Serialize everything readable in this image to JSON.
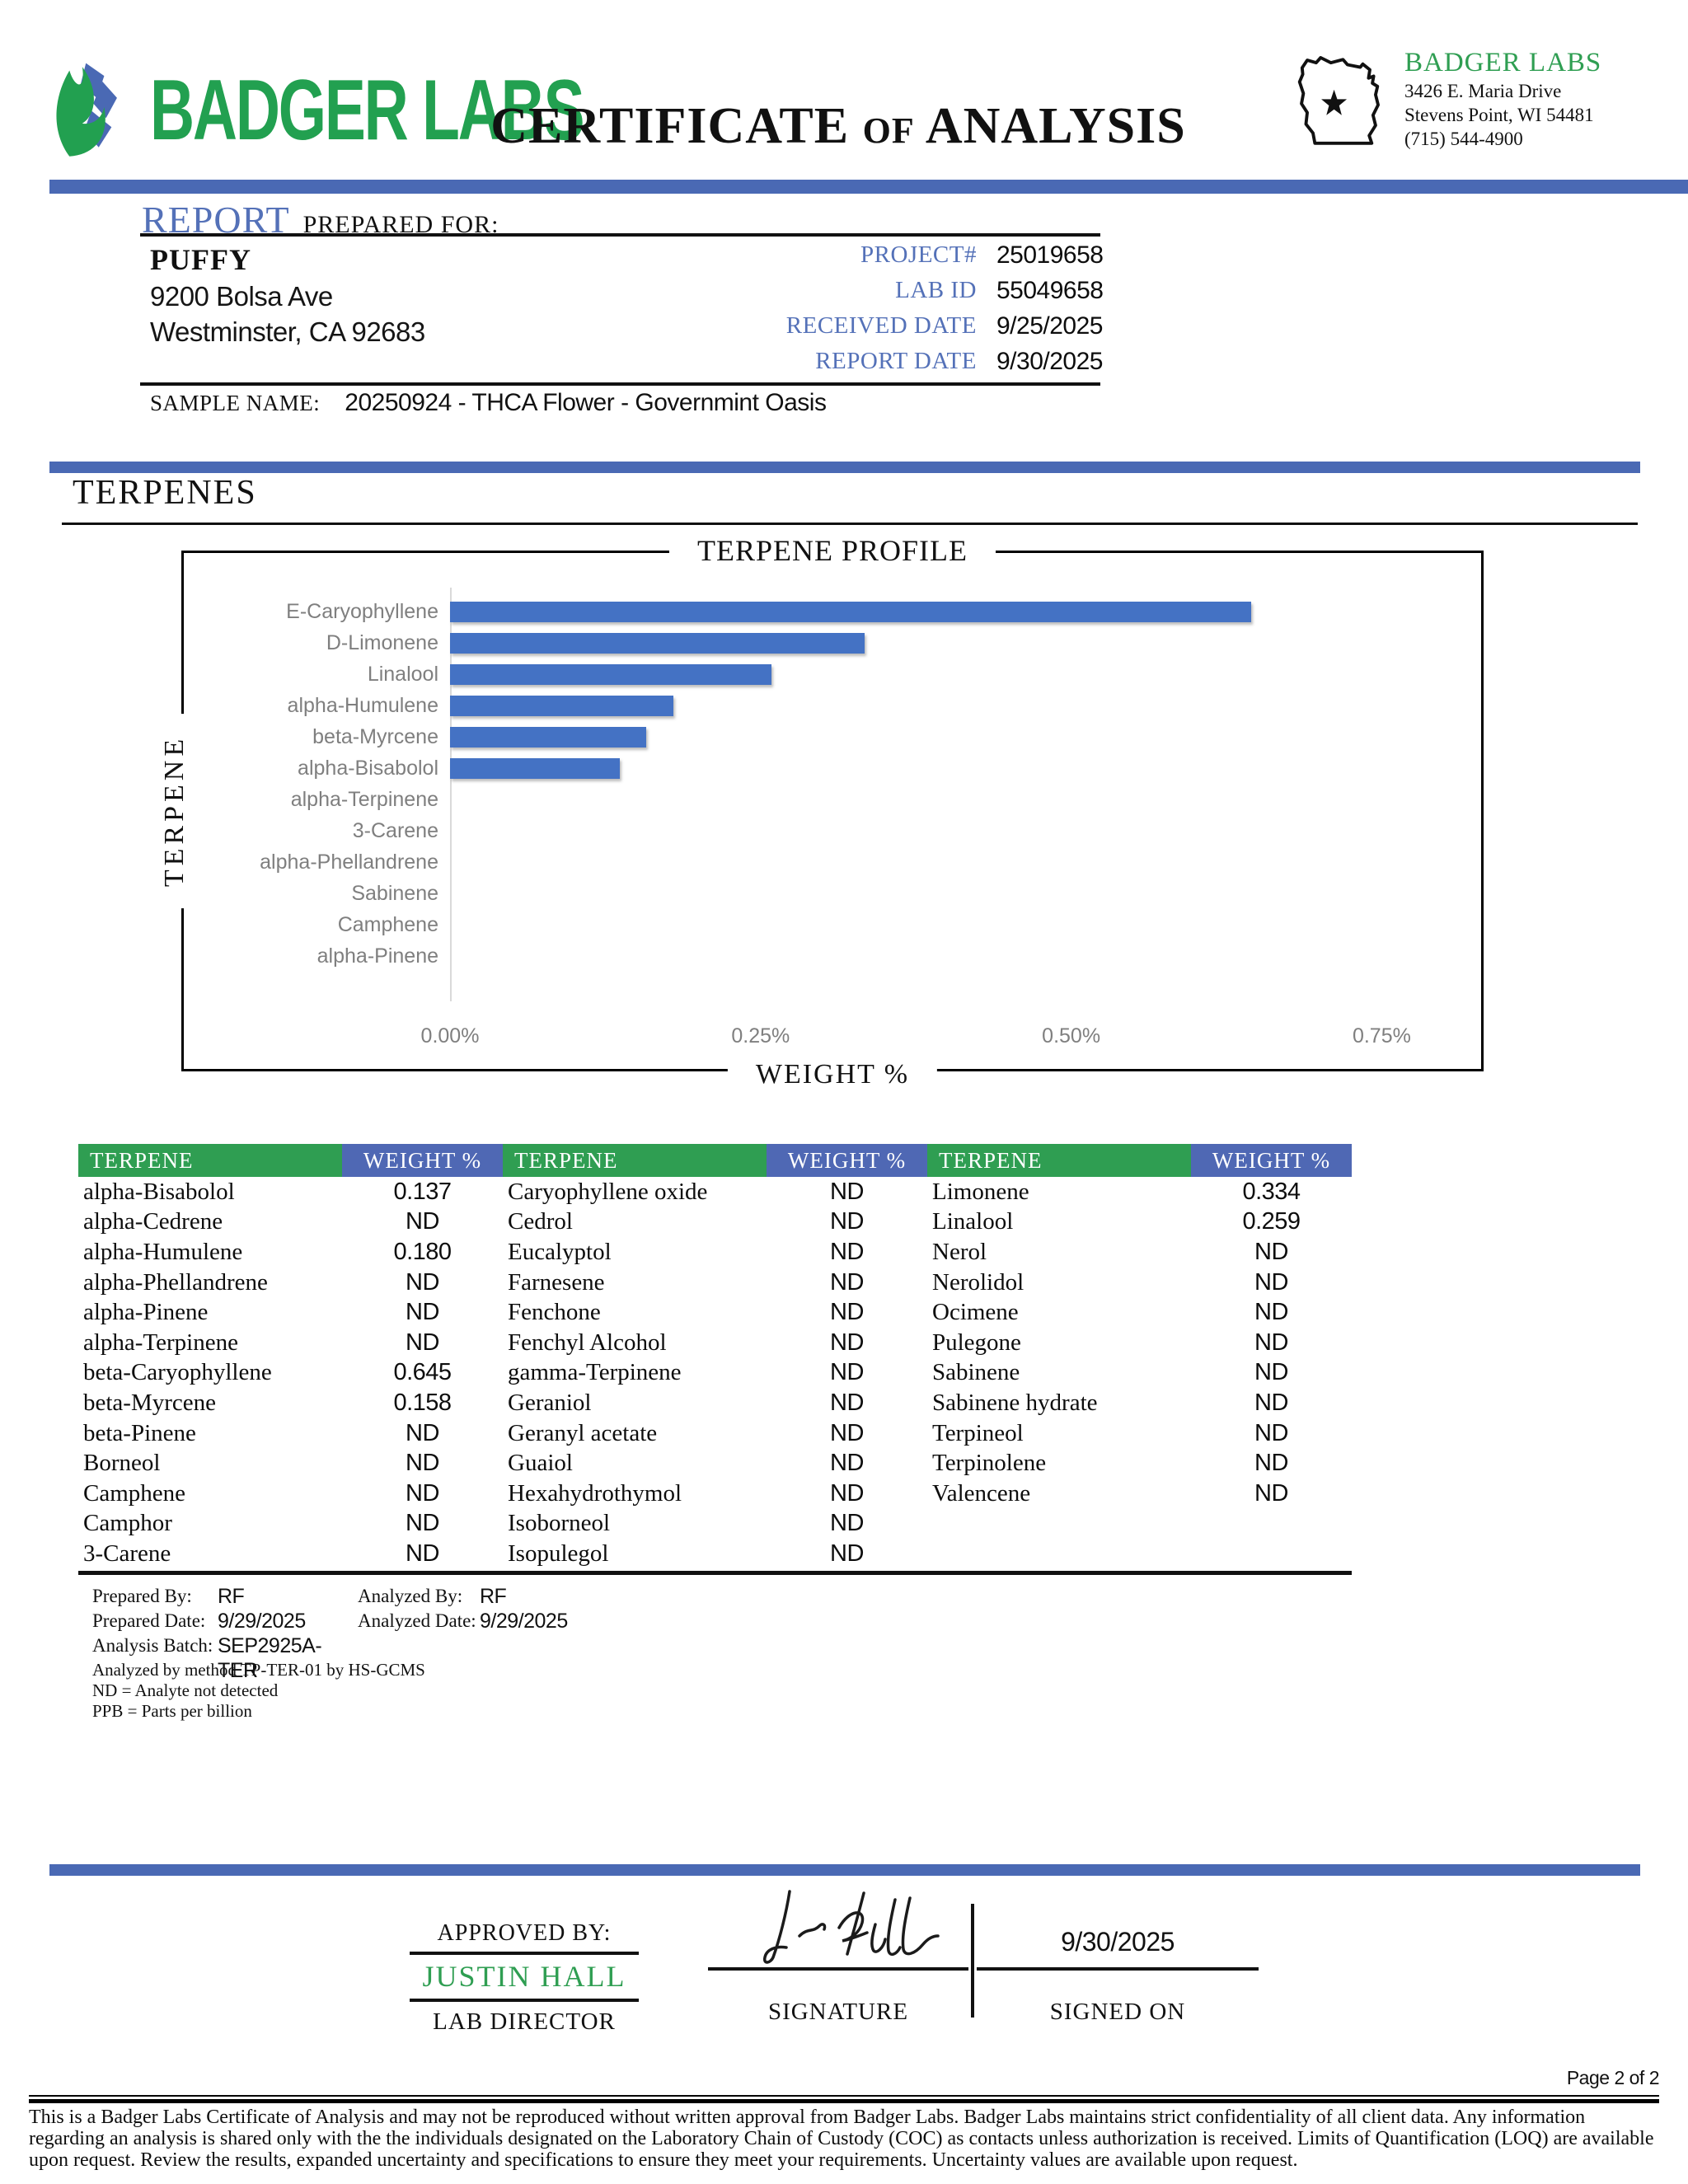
{
  "header": {
    "brand": "BADGER LABS",
    "title_certificate": "CERTIFICATE",
    "title_of": "OF",
    "title_analysis": "ANALYSIS",
    "lab": {
      "name": "BADGER LABS",
      "address_line1": "3426 E. Maria Drive",
      "address_line2": "Stevens Point, WI 54481",
      "phone": "(715) 544-4900"
    }
  },
  "report": {
    "heading": "REPORT",
    "heading_suffix": "PREPARED FOR:",
    "client": {
      "name": "PUFFY",
      "address_line1": "9200 Bolsa Ave",
      "address_line2": "Westminster, CA 92683"
    },
    "meta": [
      {
        "label": "PROJECT#",
        "value": "25019658"
      },
      {
        "label": "LAB ID",
        "value": "55049658"
      },
      {
        "label": "RECEIVED DATE",
        "value": "9/25/2025"
      },
      {
        "label": "REPORT DATE",
        "value": "9/30/2025"
      }
    ],
    "sample_name_label": "SAMPLE NAME:",
    "sample_name_value": "20250924 - THCA Flower - Governmint Oasis"
  },
  "section": {
    "title": "TERPENES"
  },
  "chart_data": {
    "type": "bar",
    "orientation": "horizontal",
    "title": "TERPENE PROFILE",
    "xlabel": "WEIGHT %",
    "ylabel": "TERPENE",
    "categories": [
      "E-Caryophyllene",
      "D-Limonene",
      "Linalool",
      "alpha-Humulene",
      "beta-Myrcene",
      "alpha-Bisabolol",
      "alpha-Terpinene",
      "3-Carene",
      "alpha-Phellandrene",
      "Sabinene",
      "Camphene",
      "alpha-Pinene"
    ],
    "values": [
      0.645,
      0.334,
      0.259,
      0.18,
      0.158,
      0.137,
      0,
      0,
      0,
      0,
      0,
      0
    ],
    "x_ticks": [
      "0.00%",
      "0.25%",
      "0.50%",
      "0.75%"
    ],
    "x_tick_values": [
      0,
      0.25,
      0.5,
      0.75
    ],
    "xlim": [
      0,
      0.83
    ],
    "grid": false,
    "legend": "none",
    "bar_color": "#4472c4"
  },
  "table": {
    "header_terpene": "TERPENE",
    "header_weight": "WEIGHT %",
    "groups": [
      {
        "rows": [
          {
            "name": "alpha-Bisabolol",
            "value": "0.137"
          },
          {
            "name": "alpha-Cedrene",
            "value": "ND"
          },
          {
            "name": "alpha-Humulene",
            "value": "0.180"
          },
          {
            "name": "alpha-Phellandrene",
            "value": "ND"
          },
          {
            "name": "alpha-Pinene",
            "value": "ND"
          },
          {
            "name": "alpha-Terpinene",
            "value": "ND"
          },
          {
            "name": "beta-Caryophyllene",
            "value": "0.645"
          },
          {
            "name": "beta-Myrcene",
            "value": "0.158"
          },
          {
            "name": "beta-Pinene",
            "value": "ND"
          },
          {
            "name": "Borneol",
            "value": "ND"
          },
          {
            "name": "Camphene",
            "value": "ND"
          },
          {
            "name": "Camphor",
            "value": "ND"
          },
          {
            "name": "3-Carene",
            "value": "ND"
          }
        ]
      },
      {
        "rows": [
          {
            "name": "Caryophyllene oxide",
            "value": "ND"
          },
          {
            "name": "Cedrol",
            "value": "ND"
          },
          {
            "name": "Eucalyptol",
            "value": "ND"
          },
          {
            "name": "Farnesene",
            "value": "ND"
          },
          {
            "name": "Fenchone",
            "value": "ND"
          },
          {
            "name": "Fenchyl Alcohol",
            "value": "ND"
          },
          {
            "name": "gamma-Terpinene",
            "value": "ND"
          },
          {
            "name": "Geraniol",
            "value": "ND"
          },
          {
            "name": "Geranyl acetate",
            "value": "ND"
          },
          {
            "name": "Guaiol",
            "value": "ND"
          },
          {
            "name": "Hexahydrothymol",
            "value": "ND"
          },
          {
            "name": "Isoborneol",
            "value": "ND"
          },
          {
            "name": "Isopulegol",
            "value": "ND"
          }
        ]
      },
      {
        "rows": [
          {
            "name": "Limonene",
            "value": "0.334"
          },
          {
            "name": "Linalool",
            "value": "0.259"
          },
          {
            "name": "Nerol",
            "value": "ND"
          },
          {
            "name": "Nerolidol",
            "value": "ND"
          },
          {
            "name": "Ocimene",
            "value": "ND"
          },
          {
            "name": "Pulegone",
            "value": "ND"
          },
          {
            "name": "Sabinene",
            "value": "ND"
          },
          {
            "name": "Sabinene hydrate",
            "value": "ND"
          },
          {
            "name": "Terpineol",
            "value": "ND"
          },
          {
            "name": "Terpinolene",
            "value": "ND"
          },
          {
            "name": "Valencene",
            "value": "ND"
          }
        ]
      }
    ]
  },
  "analysis_info": {
    "prepared_by_label": "Prepared By:",
    "prepared_by": "RF",
    "analyzed_by_label": "Analyzed By:",
    "analyzed_by": "RF",
    "prepared_date_label": "Prepared Date:",
    "prepared_date": "9/29/2025",
    "analyzed_date_label": "Analyzed Date:",
    "analyzed_date": "9/29/2025",
    "analysis_batch_label": "Analysis Batch:",
    "analysis_batch": "SEP2925A-TER",
    "method_note": "Analyzed by method TP-TER-01 by HS-GCMS",
    "nd_note": "ND = Analyte not detected",
    "ppb_note": "PPB = Parts per billion"
  },
  "approval": {
    "approved_by_label": "APPROVED BY:",
    "approver_name": "JUSTIN HALL",
    "approver_title": "LAB DIRECTOR",
    "signature_label": "SIGNATURE",
    "signed_on_label": "SIGNED ON",
    "signed_on_date": "9/30/2025"
  },
  "footer": {
    "page_indicator": "Page 2 of 2",
    "disclaimer": "This is a Badger Labs Certificate of Analysis and may not be reproduced without written approval from Badger Labs. Badger Labs maintains strict confidentiality of all client data. Any information regarding an analysis is shared only with the the individuals designated on the Laboratory Chain of Custody (COC) as contacts unless authorization is received. Limits of Quantification (LOQ) are available upon request. Review the results, expanded uncertainty and specifications to ensure they meet your requirements. Uncertainty values are available upon request."
  },
  "colors": {
    "accent_blue": "#4a69b4",
    "label_blue": "#5471b8",
    "table_header_green": "#2f9e52",
    "table_header_blue": "#4f68b4",
    "chart_bar_blue": "#4472c4",
    "brand_green": "#22a050"
  }
}
